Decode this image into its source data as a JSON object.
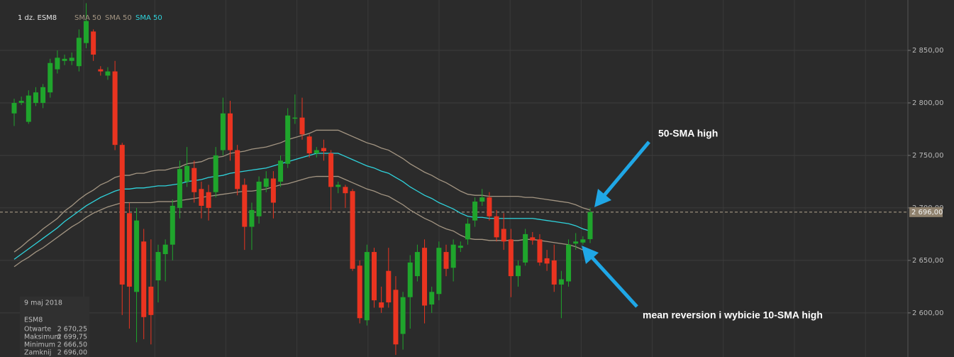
{
  "chart_data": {
    "type": "candlestick",
    "instrument_label": "1 dz. ESM8",
    "up_color": "#1fa52c",
    "down_color": "#ea3420",
    "ohlc": {
      "open": [
        2790,
        2800,
        2782,
        2800,
        2800,
        2810,
        2832,
        2840,
        2840,
        2835,
        2857,
        2868,
        2832,
        2826,
        2830,
        2760,
        2695,
        2620,
        2668,
        2625,
        2631,
        2656,
        2665,
        2700,
        2725,
        2738,
        2718,
        2715,
        2715,
        2755,
        2790,
        2755,
        2722,
        2682,
        2692,
        2720,
        2728,
        2725,
        2742,
        2785,
        2786,
        2768,
        2752,
        2757,
        2752,
        2720,
        2720,
        2716,
        2645,
        2593,
        2658,
        2610,
        2640,
        2622,
        2580,
        2615,
        2635,
        2662,
        2608,
        2618,
        2658,
        2643,
        2662,
        2670,
        2688,
        2706,
        2710,
        2692,
        2680,
        2670,
        2635,
        2648,
        2672,
        2670,
        2652,
        2650,
        2627,
        2630,
        2666,
        2667,
        2670.25
      ],
      "high": [
        2804,
        2806,
        2812,
        2815,
        2818,
        2842,
        2850,
        2846,
        2848,
        2870,
        2895,
        2870,
        2835,
        2834,
        2840,
        2762,
        2705,
        2700,
        2680,
        2670,
        2665,
        2670,
        2708,
        2745,
        2758,
        2745,
        2725,
        2722,
        2758,
        2805,
        2802,
        2760,
        2728,
        2705,
        2730,
        2735,
        2735,
        2750,
        2795,
        2808,
        2805,
        2770,
        2758,
        2765,
        2755,
        2725,
        2722,
        2718,
        2650,
        2665,
        2662,
        2625,
        2662,
        2635,
        2620,
        2655,
        2665,
        2670,
        2625,
        2668,
        2665,
        2670,
        2668,
        2690,
        2710,
        2718,
        2715,
        2698,
        2695,
        2680,
        2650,
        2680,
        2677,
        2675,
        2660,
        2665,
        2640,
        2670,
        2676,
        2673,
        2699.75
      ],
      "low": [
        2778,
        2798,
        2780,
        2797,
        2795,
        2805,
        2828,
        2836,
        2836,
        2830,
        2852,
        2840,
        2826,
        2822,
        2755,
        2598,
        2585,
        2572,
        2575,
        2570,
        2610,
        2630,
        2650,
        2690,
        2720,
        2705,
        2690,
        2688,
        2710,
        2750,
        2745,
        2712,
        2660,
        2660,
        2685,
        2715,
        2690,
        2720,
        2738,
        2780,
        2765,
        2748,
        2748,
        2745,
        2698,
        2714,
        2700,
        2640,
        2590,
        2588,
        2605,
        2600,
        2605,
        2560,
        2565,
        2585,
        2630,
        2590,
        2600,
        2612,
        2635,
        2630,
        2658,
        2665,
        2682,
        2702,
        2688,
        2668,
        2660,
        2615,
        2625,
        2645,
        2665,
        2645,
        2640,
        2620,
        2595,
        2625,
        2660,
        2665,
        2666.5
      ],
      "close": [
        2800,
        2802,
        2807,
        2810,
        2815,
        2838,
        2843,
        2842,
        2843,
        2862,
        2878,
        2846,
        2830,
        2830,
        2760,
        2627,
        2625,
        2688,
        2596,
        2598,
        2658,
        2665,
        2702,
        2737,
        2740,
        2715,
        2702,
        2700,
        2750,
        2790,
        2755,
        2718,
        2682,
        2698,
        2725,
        2728,
        2705,
        2745,
        2788,
        2786,
        2770,
        2752,
        2755,
        2754,
        2720,
        2722,
        2714,
        2642,
        2595,
        2658,
        2612,
        2605,
        2610,
        2570,
        2615,
        2648,
        2658,
        2607,
        2620,
        2662,
        2642,
        2665,
        2664,
        2685,
        2706,
        2710,
        2692,
        2672,
        2668,
        2635,
        2645,
        2675,
        2669,
        2648,
        2647,
        2627,
        2632,
        2665,
        2668,
        2670,
        2696
      ]
    },
    "overlays": [
      {
        "name": "SMA 50",
        "color": "#a39582",
        "values": [
          2658,
          2663,
          2669,
          2674,
          2680,
          2685,
          2690,
          2697,
          2702,
          2708,
          2713,
          2717,
          2722,
          2725,
          2729,
          2731,
          2731,
          2733,
          2733,
          2735,
          2736,
          2736,
          2738,
          2739,
          2742,
          2743,
          2744,
          2747,
          2748,
          2749,
          2752,
          2753,
          2754,
          2756,
          2757,
          2758,
          2760,
          2762,
          2765,
          2767,
          2769,
          2771,
          2774,
          2774,
          2774,
          2774,
          2771,
          2768,
          2765,
          2762,
          2760,
          2757,
          2755,
          2751,
          2747,
          2742,
          2738,
          2734,
          2731,
          2727,
          2724,
          2720,
          2716,
          2713,
          2712,
          2712,
          2711,
          2711,
          2711,
          2711,
          2711,
          2710,
          2710,
          2709,
          2708,
          2707,
          2706,
          2705,
          2703,
          2700,
          2698
        ]
      },
      {
        "name": "SMA 50",
        "color": "#a39582",
        "values": [
          2644,
          2649,
          2653,
          2658,
          2662,
          2667,
          2672,
          2677,
          2682,
          2686,
          2691,
          2695,
          2698,
          2701,
          2703,
          2705,
          2705,
          2705,
          2705,
          2705,
          2706,
          2706,
          2706,
          2707,
          2708,
          2709,
          2710,
          2711,
          2712,
          2713,
          2714,
          2715,
          2716,
          2716,
          2717,
          2718,
          2720,
          2722,
          2723,
          2725,
          2727,
          2729,
          2730,
          2730,
          2730,
          2730,
          2727,
          2724,
          2721,
          2718,
          2716,
          2713,
          2711,
          2707,
          2703,
          2698,
          2694,
          2690,
          2687,
          2683,
          2680,
          2678,
          2674,
          2671,
          2670,
          2670,
          2669,
          2669,
          2669,
          2669,
          2669,
          2670,
          2670,
          2669,
          2668,
          2667,
          2666,
          2665,
          2663,
          2660,
          2658
        ]
      },
      {
        "name": "SMA 50",
        "color": "#2fd3dc",
        "values": [
          2651,
          2656,
          2661,
          2666,
          2671,
          2676,
          2681,
          2687,
          2692,
          2697,
          2702,
          2706,
          2710,
          2713,
          2716,
          2718,
          2718,
          2719,
          2719,
          2720,
          2721,
          2721,
          2722,
          2723,
          2725,
          2726,
          2727,
          2729,
          2730,
          2731,
          2733,
          2734,
          2735,
          2736,
          2737,
          2738,
          2740,
          2742,
          2744,
          2746,
          2748,
          2750,
          2752,
          2752,
          2752,
          2752,
          2749,
          2746,
          2743,
          2740,
          2738,
          2735,
          2733,
          2729,
          2725,
          2720,
          2716,
          2712,
          2709,
          2705,
          2702,
          2699,
          2695,
          2692,
          2691,
          2691,
          2690,
          2690,
          2690,
          2690,
          2690,
          2690,
          2690,
          2689,
          2688,
          2687,
          2686,
          2685,
          2683,
          2680,
          2678
        ]
      }
    ],
    "ylim": [
      2558,
      2898
    ],
    "yticks": [
      {
        "value": 2600,
        "label": "2 600,00"
      },
      {
        "value": 2650,
        "label": "2 650,00"
      },
      {
        "value": 2700,
        "label": "2 700,00"
      },
      {
        "value": 2750,
        "label": "2 750,00"
      },
      {
        "value": 2800,
        "label": "2 800,00"
      },
      {
        "value": 2850,
        "label": "2 850,00"
      }
    ],
    "grid": true,
    "last_price": {
      "value": 2696,
      "label": "2 696,00"
    },
    "annotations": [
      "50-SMA high",
      "mean reversion i wybicie 10-SMA high"
    ],
    "info_box": {
      "date": "9 maj 2018",
      "instrument": "ESM8",
      "rows": [
        {
          "label": "Otwarte",
          "value": "2 670,25"
        },
        {
          "label": "Maksimum",
          "value": "2 699,75"
        },
        {
          "label": "Minimum",
          "value": "2 666,50"
        },
        {
          "label": "Zamknij",
          "value": "2 696,00"
        }
      ]
    }
  }
}
